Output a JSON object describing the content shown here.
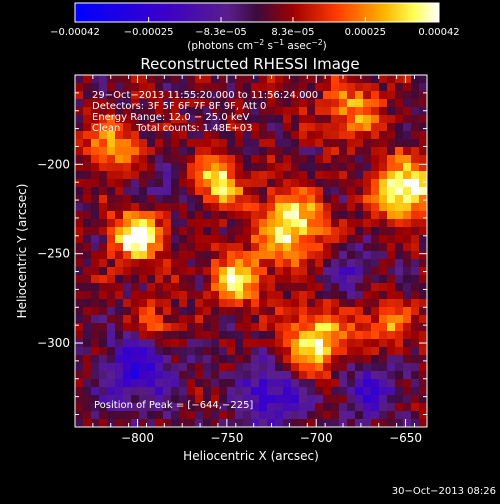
{
  "chart_data": {
    "type": "heatmap",
    "title": "Reconstructed RHESSI Image",
    "xlabel": "Heliocentric X (arcsec)",
    "ylabel": "Heliocentric Y (arcsec)",
    "xlim": [
      -835,
      -638
    ],
    "ylim": [
      -347,
      -150
    ],
    "xticks": [
      {
        "value": -800,
        "label": "−800"
      },
      {
        "value": -750,
        "label": "−750"
      },
      {
        "value": -700,
        "label": "−700"
      },
      {
        "value": -650,
        "label": "−650"
      }
    ],
    "yticks": [
      {
        "value": -200,
        "label": "−200"
      },
      {
        "value": -250,
        "label": "−250"
      },
      {
        "value": -300,
        "label": "−300"
      }
    ],
    "colorbar": {
      "range": [
        -0.00042,
        0.00042
      ],
      "ticks": [
        {
          "value": -0.00042,
          "label": "−0.00042"
        },
        {
          "value": -0.00025,
          "label": "−0.00025"
        },
        {
          "value": -8.3e-05,
          "label": "−8.3e−05"
        },
        {
          "value": 8.3e-05,
          "label": "8.3e−05"
        },
        {
          "value": 0.00025,
          "label": "0.00025"
        },
        {
          "value": 0.00042,
          "label": "0.00042"
        }
      ],
      "units_prefix": "(photons cm",
      "units_exp1": "−2",
      "units_mid1": " s",
      "units_exp2": "−1",
      "units_mid2": " asec",
      "units_exp3": "−2",
      "units_suffix": ")"
    },
    "info": [
      "29−Oct−2013 11:55:20.000 to 11:56:24.000",
      "Detectors: 3F 5F 6F 7F 8F 9F, Att 0",
      "Energy Range: 12.0 − 25.0 keV",
      "Clean     Total counts: 1.48E+03"
    ],
    "peak_label": "Position of Peak = [−644,−225]",
    "peak": [
      -644,
      -225
    ],
    "hotspots": [
      {
        "x": -800,
        "y": -240,
        "amp": 1.0,
        "sigma": 10
      },
      {
        "x": -650,
        "y": -215,
        "amp": 0.95,
        "sigma": 12
      },
      {
        "x": -755,
        "y": -210,
        "amp": 0.8,
        "sigma": 9
      },
      {
        "x": -715,
        "y": -235,
        "amp": 0.85,
        "sigma": 14
      },
      {
        "x": -745,
        "y": -265,
        "amp": 0.75,
        "sigma": 10
      },
      {
        "x": -700,
        "y": -300,
        "amp": 0.8,
        "sigma": 13
      },
      {
        "x": -815,
        "y": -190,
        "amp": 0.6,
        "sigma": 10
      },
      {
        "x": -680,
        "y": -170,
        "amp": 0.55,
        "sigma": 12
      },
      {
        "x": -790,
        "y": -290,
        "amp": 0.45,
        "sigma": 9
      },
      {
        "x": -660,
        "y": -290,
        "amp": 0.5,
        "sigma": 10
      },
      {
        "x": -800,
        "y": -315,
        "amp": -0.7,
        "sigma": 14
      },
      {
        "x": -725,
        "y": -330,
        "amp": -0.6,
        "sigma": 14
      },
      {
        "x": -670,
        "y": -325,
        "amp": -0.55,
        "sigma": 12
      },
      {
        "x": -680,
        "y": -260,
        "amp": -0.35,
        "sigma": 10
      },
      {
        "x": -785,
        "y": -215,
        "amp": -0.3,
        "sigma": 9
      }
    ]
  },
  "timestamp": "30−Oct−2013 08:26"
}
